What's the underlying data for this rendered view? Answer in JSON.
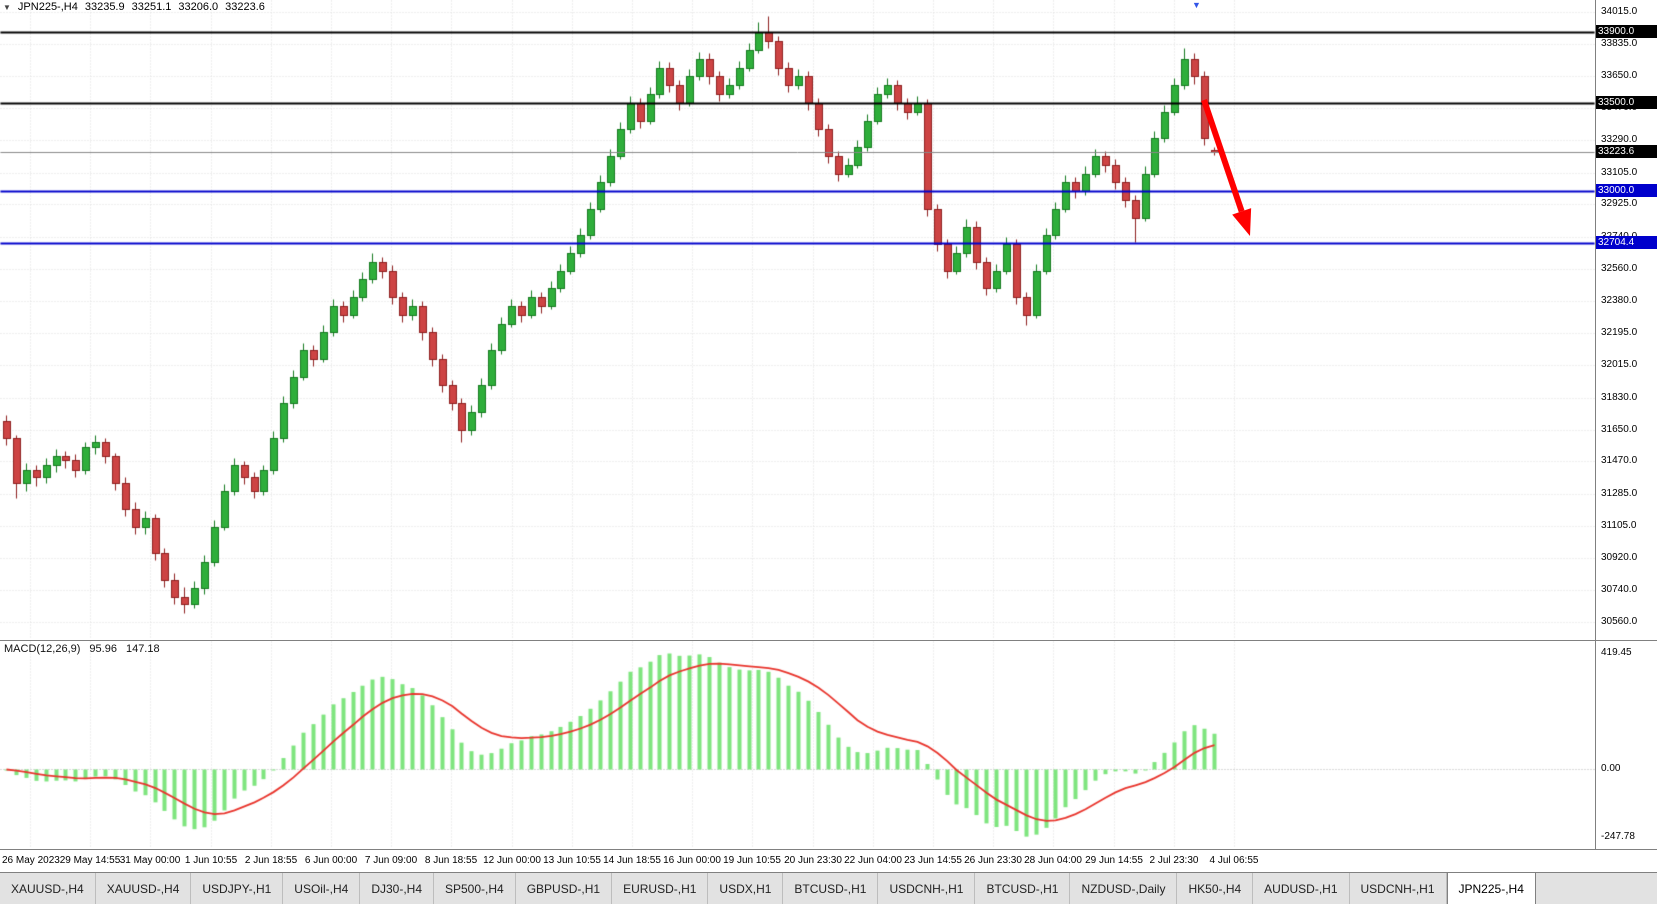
{
  "header": {
    "collapse_icon": "▼",
    "symbol": "JPN225-,H4",
    "open": "33235.9",
    "high": "33251.1",
    "low": "33206.0",
    "close": "33223.6"
  },
  "chart_data": {
    "type": "candlestick",
    "symbol": "JPN225-",
    "timeframe": "H4",
    "price_axis": {
      "min": 30560,
      "max": 34015,
      "labels": [
        "34015.0",
        "33835.0",
        "33650.0",
        "33470.0",
        "33290.0",
        "33105.0",
        "32925.0",
        "32740.0",
        "32560.0",
        "32380.0",
        "32195.0",
        "32015.0",
        "31830.0",
        "31650.0",
        "31470.0",
        "31285.0",
        "31105.0",
        "30920.0",
        "30740.0",
        "30560.0"
      ]
    },
    "x_labels": [
      "26 May 2023",
      "29 May 14:55",
      "31 May 00:00",
      "1 Jun 10:55",
      "2 Jun 18:55",
      "6 Jun 00:00",
      "7 Jun 09:00",
      "8 Jun 18:55",
      "12 Jun 00:00",
      "13 Jun 10:55",
      "14 Jun 18:55",
      "16 Jun 00:00",
      "19 Jun 10:55",
      "20 Jun 23:30",
      "22 Jun 04:00",
      "23 Jun 14:55",
      "26 Jun 23:30",
      "28 Jun 04:00",
      "29 Jun 14:55",
      "2 Jul 23:30",
      "4 Jul 06:55"
    ],
    "candles": [
      [
        31700,
        31730,
        31560,
        31600
      ],
      [
        31600,
        31620,
        31260,
        31350
      ],
      [
        31350,
        31460,
        31300,
        31420
      ],
      [
        31420,
        31450,
        31330,
        31380
      ],
      [
        31380,
        31490,
        31350,
        31450
      ],
      [
        31450,
        31540,
        31410,
        31500
      ],
      [
        31500,
        31530,
        31430,
        31480
      ],
      [
        31480,
        31510,
        31380,
        31420
      ],
      [
        31420,
        31580,
        31400,
        31550
      ],
      [
        31550,
        31620,
        31510,
        31580
      ],
      [
        31580,
        31600,
        31460,
        31500
      ],
      [
        31500,
        31520,
        31310,
        31350
      ],
      [
        31350,
        31380,
        31160,
        31200
      ],
      [
        31200,
        31240,
        31060,
        31100
      ],
      [
        31100,
        31190,
        31060,
        31150
      ],
      [
        31150,
        31170,
        30910,
        30950
      ],
      [
        30950,
        30980,
        30760,
        30800
      ],
      [
        30800,
        30840,
        30660,
        30700
      ],
      [
        30700,
        30760,
        30610,
        30660
      ],
      [
        30660,
        30790,
        30640,
        30750
      ],
      [
        30750,
        30940,
        30720,
        30900
      ],
      [
        30900,
        31140,
        30880,
        31100
      ],
      [
        31100,
        31340,
        31080,
        31300
      ],
      [
        31300,
        31490,
        31280,
        31450
      ],
      [
        31450,
        31470,
        31340,
        31380
      ],
      [
        31380,
        31410,
        31260,
        31300
      ],
      [
        31300,
        31450,
        31280,
        31420
      ],
      [
        31420,
        31640,
        31400,
        31600
      ],
      [
        31600,
        31840,
        31580,
        31800
      ],
      [
        31800,
        31990,
        31770,
        31950
      ],
      [
        31950,
        32140,
        31930,
        32100
      ],
      [
        32100,
        32130,
        32010,
        32050
      ],
      [
        32050,
        32240,
        32030,
        32200
      ],
      [
        32200,
        32390,
        32180,
        32350
      ],
      [
        32350,
        32380,
        32260,
        32300
      ],
      [
        32300,
        32440,
        32280,
        32400
      ],
      [
        32400,
        32540,
        32380,
        32500
      ],
      [
        32500,
        32650,
        32480,
        32600
      ],
      [
        32600,
        32630,
        32510,
        32550
      ],
      [
        32550,
        32580,
        32360,
        32400
      ],
      [
        32400,
        32430,
        32260,
        32300
      ],
      [
        32300,
        32390,
        32270,
        32350
      ],
      [
        32350,
        32380,
        32160,
        32200
      ],
      [
        32200,
        32230,
        32010,
        32050
      ],
      [
        32050,
        32080,
        31860,
        31900
      ],
      [
        31900,
        31930,
        31760,
        31800
      ],
      [
        31800,
        31830,
        31580,
        31650
      ],
      [
        31650,
        31790,
        31620,
        31750
      ],
      [
        31750,
        31940,
        31720,
        31900
      ],
      [
        31900,
        32140,
        31880,
        32100
      ],
      [
        32100,
        32290,
        32080,
        32250
      ],
      [
        32250,
        32390,
        32230,
        32350
      ],
      [
        32350,
        32380,
        32260,
        32300
      ],
      [
        32300,
        32440,
        32280,
        32400
      ],
      [
        32400,
        32430,
        32310,
        32350
      ],
      [
        32350,
        32490,
        32330,
        32450
      ],
      [
        32450,
        32590,
        32430,
        32550
      ],
      [
        32550,
        32690,
        32530,
        32650
      ],
      [
        32650,
        32790,
        32630,
        32750
      ],
      [
        32750,
        32940,
        32730,
        32900
      ],
      [
        32900,
        33090,
        32880,
        33050
      ],
      [
        33050,
        33240,
        33030,
        33200
      ],
      [
        33200,
        33390,
        33180,
        33350
      ],
      [
        33350,
        33540,
        33330,
        33500
      ],
      [
        33500,
        33530,
        33360,
        33400
      ],
      [
        33400,
        33590,
        33380,
        33550
      ],
      [
        33550,
        33740,
        33530,
        33700
      ],
      [
        33700,
        33730,
        33560,
        33600
      ],
      [
        33600,
        33630,
        33460,
        33500
      ],
      [
        33500,
        33690,
        33480,
        33650
      ],
      [
        33650,
        33790,
        33630,
        33750
      ],
      [
        33750,
        33780,
        33610,
        33650
      ],
      [
        33650,
        33680,
        33510,
        33550
      ],
      [
        33550,
        33640,
        33530,
        33600
      ],
      [
        33600,
        33740,
        33580,
        33700
      ],
      [
        33700,
        33840,
        33680,
        33800
      ],
      [
        33800,
        33960,
        33780,
        33900
      ],
      [
        33900,
        33990,
        33810,
        33850
      ],
      [
        33850,
        33880,
        33660,
        33700
      ],
      [
        33700,
        33730,
        33560,
        33600
      ],
      [
        33600,
        33690,
        33580,
        33650
      ],
      [
        33650,
        33680,
        33460,
        33500
      ],
      [
        33500,
        33530,
        33310,
        33350
      ],
      [
        33350,
        33380,
        33160,
        33200
      ],
      [
        33200,
        33230,
        33060,
        33100
      ],
      [
        33100,
        33190,
        33080,
        33150
      ],
      [
        33150,
        33290,
        33130,
        33250
      ],
      [
        33250,
        33440,
        33230,
        33400
      ],
      [
        33400,
        33590,
        33380,
        33550
      ],
      [
        33550,
        33640,
        33530,
        33600
      ],
      [
        33600,
        33630,
        33460,
        33500
      ],
      [
        33500,
        33530,
        33410,
        33450
      ],
      [
        33450,
        33540,
        33430,
        33500
      ],
      [
        33500,
        33520,
        32860,
        32900
      ],
      [
        32900,
        32930,
        32660,
        32700
      ],
      [
        32700,
        32730,
        32510,
        32550
      ],
      [
        32550,
        32690,
        32530,
        32650
      ],
      [
        32650,
        32840,
        32630,
        32800
      ],
      [
        32800,
        32830,
        32560,
        32600
      ],
      [
        32600,
        32630,
        32410,
        32450
      ],
      [
        32450,
        32590,
        32430,
        32550
      ],
      [
        32550,
        32740,
        32530,
        32700
      ],
      [
        32700,
        32730,
        32360,
        32400
      ],
      [
        32400,
        32430,
        32240,
        32300
      ],
      [
        32300,
        32590,
        32280,
        32550
      ],
      [
        32550,
        32790,
        32530,
        32750
      ],
      [
        32750,
        32940,
        32730,
        32900
      ],
      [
        32900,
        33090,
        32880,
        33050
      ],
      [
        33050,
        33080,
        32960,
        33000
      ],
      [
        33000,
        33140,
        32980,
        33100
      ],
      [
        33100,
        33240,
        33080,
        33200
      ],
      [
        33200,
        33230,
        33110,
        33150
      ],
      [
        33150,
        33180,
        33010,
        33050
      ],
      [
        33050,
        33080,
        32910,
        32950
      ],
      [
        32950,
        32980,
        32710,
        32850
      ],
      [
        32850,
        33140,
        32830,
        33100
      ],
      [
        33100,
        33340,
        33080,
        33300
      ],
      [
        33300,
        33490,
        33280,
        33450
      ],
      [
        33450,
        33640,
        33430,
        33600
      ],
      [
        33600,
        33810,
        33580,
        33750
      ],
      [
        33750,
        33780,
        33610,
        33650
      ],
      [
        33650,
        33680,
        33260,
        33300
      ],
      [
        33235.9,
        33251.1,
        33206.0,
        33223.6
      ]
    ],
    "levels": [
      {
        "price": 33900.0,
        "label": "33900.0",
        "style": "black-line"
      },
      {
        "price": 33500.0,
        "label": "33500.0",
        "style": "black-line"
      },
      {
        "price": 33223.6,
        "label": "33223.6",
        "style": "current-price"
      },
      {
        "price": 33000.0,
        "label": "33000.0",
        "style": "blue-line"
      },
      {
        "price": 32704.4,
        "label": "32704.4",
        "style": "blue-line"
      }
    ],
    "macd": {
      "label": "MACD(12,26,9)",
      "main_value": "95.96",
      "signal_value": "147.18",
      "params": {
        "fast": 12,
        "slow": 26,
        "signal": 9
      },
      "axis_labels": [
        "419.45",
        "0.00",
        "-247.78"
      ]
    },
    "annotations": [
      {
        "type": "arrow",
        "color": "#ff0000",
        "from": [
          1204,
          100
        ],
        "to": [
          1250,
          236
        ]
      }
    ],
    "marker": {
      "glyph": "▼",
      "color": "#3355e8"
    }
  },
  "colors": {
    "up": "#2fae3b",
    "up_border": "#157a1f",
    "down": "#cd4444",
    "down_border": "#8e1f1f",
    "macd_hist": "#7fe57f",
    "macd_signal": "#e8342c",
    "blue_line": "#0000cc",
    "black_line": "#000000",
    "grid": "#dcdcdc",
    "current_line": "#888888"
  },
  "tabs": {
    "active_index": 16,
    "items": [
      "XAUUSD-,H4",
      "XAUUSD-,H4",
      "USDJPY-,H1",
      "USOil-,H4",
      "DJ30-,H4",
      "SP500-,H4",
      "GBPUSD-,H1",
      "EURUSD-,H1",
      "USDX,H1",
      "BTCUSD-,H1",
      "USDCNH-,H1",
      "BTCUSD-,H1",
      "NZDUSD-,Daily",
      "HK50-,H4",
      "AUDUSD-,H1",
      "USDCNH-,H1",
      "JPN225-,H4"
    ]
  }
}
